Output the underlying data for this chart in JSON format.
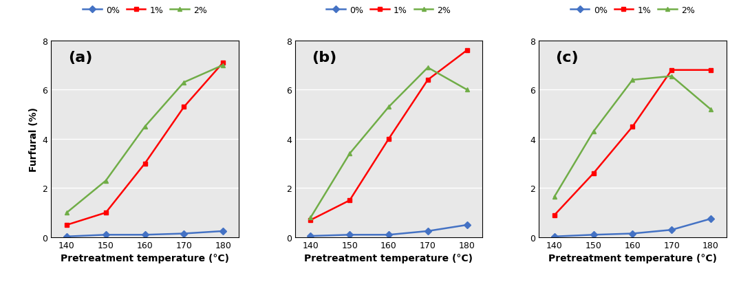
{
  "x": [
    140,
    150,
    160,
    170,
    180
  ],
  "panels": [
    {
      "label": "(a)",
      "series": {
        "0%": [
          0.03,
          0.1,
          0.1,
          0.15,
          0.25
        ],
        "1%": [
          0.5,
          1.0,
          3.0,
          5.3,
          7.1
        ],
        "2%": [
          1.0,
          2.3,
          4.5,
          6.3,
          7.0
        ]
      }
    },
    {
      "label": "(b)",
      "series": {
        "0%": [
          0.05,
          0.1,
          0.1,
          0.25,
          0.5
        ],
        "1%": [
          0.7,
          1.5,
          4.0,
          6.4,
          7.6
        ],
        "2%": [
          0.8,
          3.4,
          5.3,
          6.9,
          6.0
        ]
      }
    },
    {
      "label": "(c)",
      "series": {
        "0%": [
          0.03,
          0.1,
          0.15,
          0.3,
          0.75
        ],
        "1%": [
          0.9,
          2.6,
          4.5,
          6.8,
          6.8
        ],
        "2%": [
          1.65,
          4.3,
          6.4,
          6.55,
          5.2
        ]
      }
    }
  ],
  "colors": {
    "0%": "#4472C4",
    "1%": "#FF0000",
    "2%": "#70AD47"
  },
  "markers": {
    "0%": "D",
    "1%": "s",
    "2%": "^"
  },
  "ylabel": "Furfural (%)",
  "xlabel": "Pretreatment temperature (°C)",
  "ylim": [
    0,
    8
  ],
  "yticks": [
    0,
    2,
    4,
    6,
    8
  ],
  "legend_labels": [
    "0%",
    "1%",
    "2%"
  ],
  "label_fontsize": 10,
  "tick_fontsize": 9,
  "panel_label_fontsize": 16,
  "plot_bg_color": "#E8E8E8",
  "grid_color": "#FFFFFF",
  "fig_bg_color": "#FFFFFF"
}
